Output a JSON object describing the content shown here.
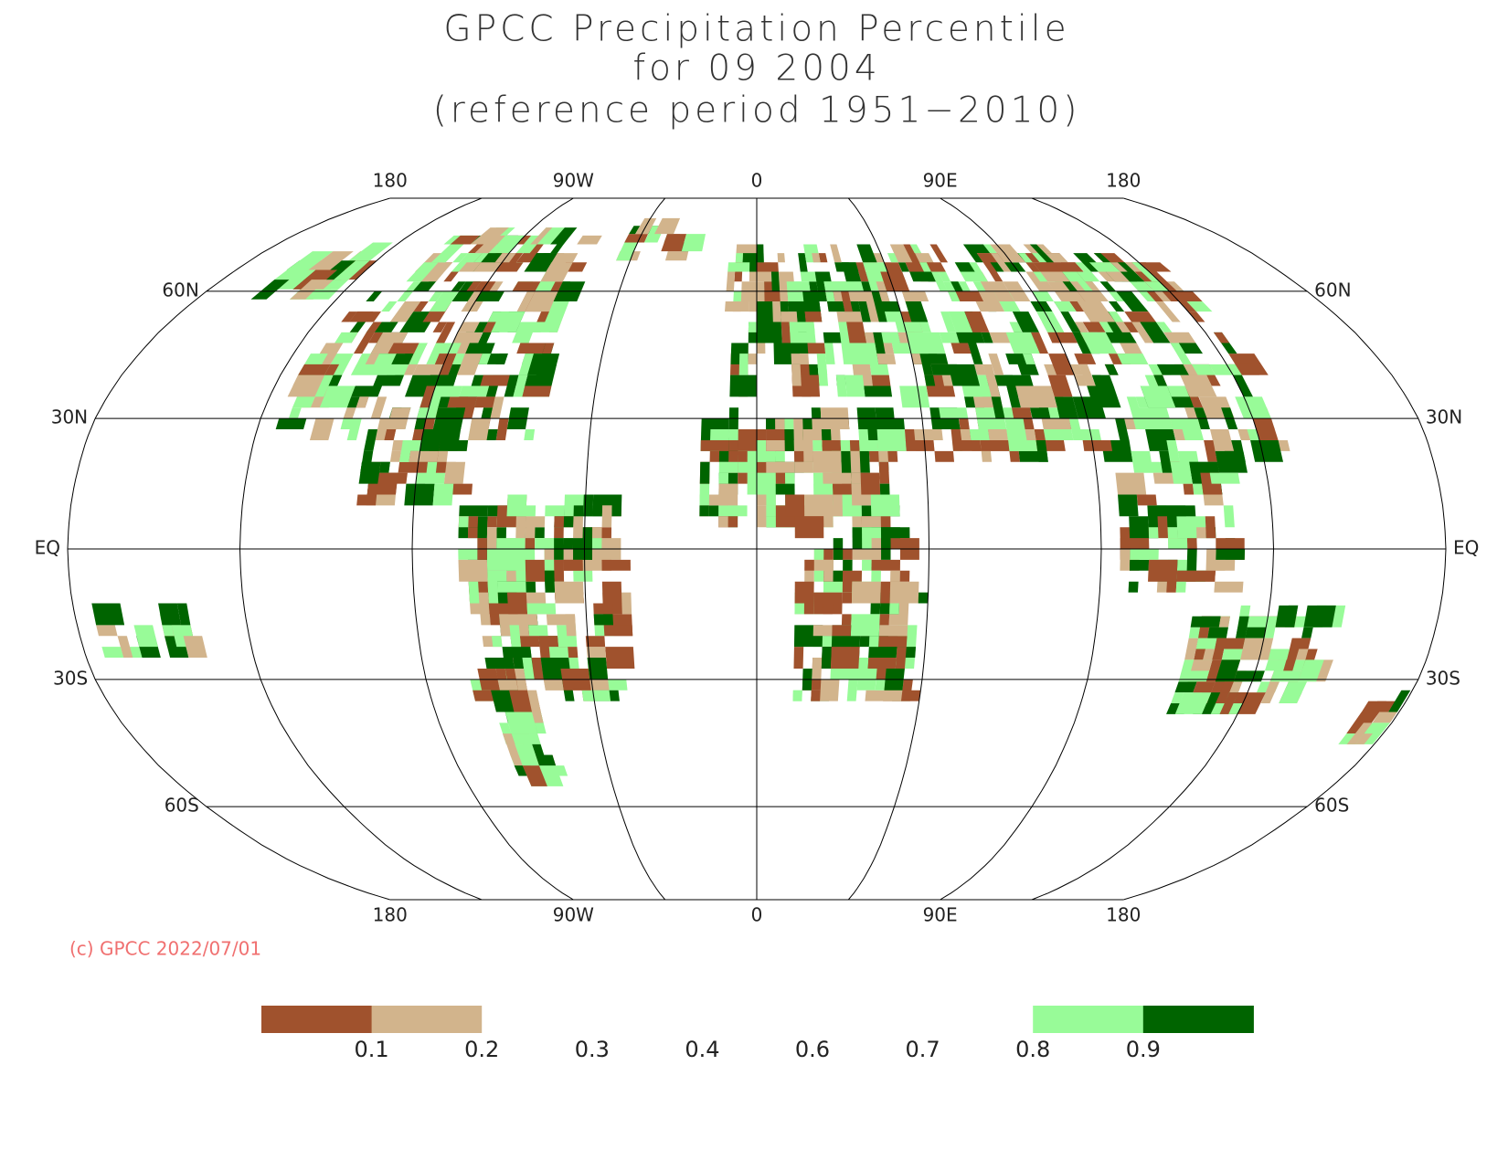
{
  "chart_data": {
    "type": "map",
    "title": [
      "GPCC Precipitation Percentile",
      "for 09 2004",
      "(reference period 1951−2010)"
    ],
    "projection": "robinson",
    "xticks": [
      {
        "value": -180,
        "label": "180"
      },
      {
        "value": -90,
        "label": "90W"
      },
      0,
      {
        "value": 90,
        "label": "90E"
      },
      {
        "value": 180,
        "label": "180"
      }
    ],
    "yticks": [
      {
        "value": 60,
        "label": "60N"
      },
      {
        "value": 30,
        "label": "30N"
      },
      {
        "value": 0,
        "label": "EQ"
      },
      {
        "value": -30,
        "label": "30S"
      },
      {
        "value": -60,
        "label": "60S"
      }
    ],
    "footnote": "(c) GPCC 2022/07/01",
    "legend": {
      "boundaries": [
        0.1,
        0.2,
        0.3,
        0.4,
        0.6,
        0.7,
        0.8,
        0.9
      ],
      "colors": [
        "#a0522d",
        "#d2b48c",
        "#ffffff",
        "#ffffff",
        "#ffffff",
        "#ffffff",
        "#ffffff",
        "#98fb98",
        "#006400"
      ]
    }
  }
}
